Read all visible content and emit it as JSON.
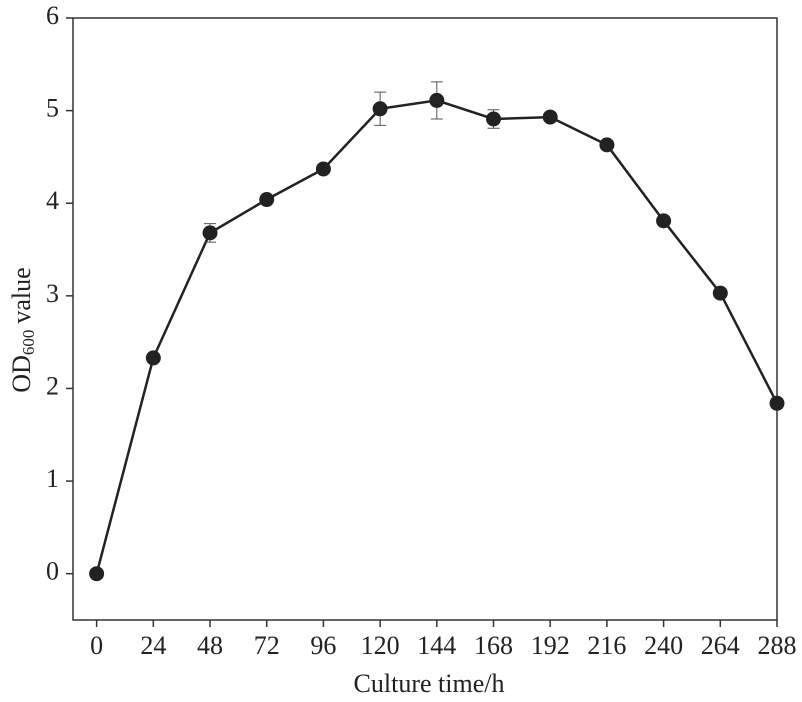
{
  "chart_data": {
    "type": "line",
    "xlabel": "Culture time/h",
    "ylabel": [
      "OD",
      "600",
      "value"
    ],
    "x": [
      0,
      24,
      48,
      72,
      96,
      120,
      144,
      168,
      192,
      216,
      240,
      264,
      288
    ],
    "series": [
      {
        "color": "#222222",
        "values": [
          0,
          2.33,
          3.68,
          4.04,
          4.37,
          5.02,
          5.11,
          4.91,
          4.93,
          4.63,
          3.81,
          3.03,
          1.84
        ],
        "errors": [
          0,
          0.02,
          0.1,
          0.02,
          0.02,
          0.18,
          0.2,
          0.1,
          0.02,
          0.02,
          0.02,
          0.02,
          0.05
        ]
      }
    ],
    "xlim": [
      -10,
      288
    ],
    "xticks": [
      0,
      24,
      48,
      72,
      96,
      120,
      144,
      168,
      192,
      216,
      240,
      264,
      288
    ],
    "ylim": [
      -0.5,
      6
    ],
    "yticks": [
      0,
      1,
      2,
      3,
      4,
      5,
      6
    ]
  }
}
